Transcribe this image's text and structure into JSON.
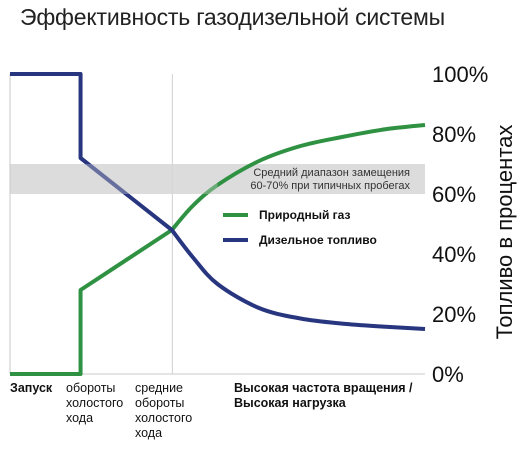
{
  "title": "Эффективность газодизельной системы",
  "chart_data": {
    "type": "line",
    "title": "Эффективность газодизельной системы",
    "ylabel": "Топливо в процентах",
    "ylim": [
      0,
      100
    ],
    "yticks": [
      "0%",
      "20%",
      "40%",
      "60%",
      "80%",
      "100%"
    ],
    "grid": false,
    "legend_position": "center-right",
    "phases": [
      {
        "label": "Запуск",
        "bold": true
      },
      {
        "label": "обороты\nхолостого\nхода",
        "bold": false
      },
      {
        "label": "средние\nобороты\nхолостого\nхода",
        "bold": false
      },
      {
        "label": "Высокая частота вращения /\nВысокая нагрузка",
        "bold": true
      }
    ],
    "phase_divider": "средние обороты холостого хода",
    "band": {
      "range": [
        60,
        70
      ],
      "text": [
        "Средний диапазон замещения",
        "60-70% при типичных пробегах"
      ]
    },
    "series": [
      {
        "name": "Природный газ",
        "color": "#2f9142",
        "points": [
          [
            0,
            0
          ],
          [
            0.17,
            0
          ],
          [
            0.17,
            28
          ],
          [
            0.39,
            48
          ],
          [
            0.44,
            56
          ],
          [
            0.5,
            63
          ],
          [
            0.6,
            71
          ],
          [
            0.7,
            76
          ],
          [
            0.8,
            79
          ],
          [
            0.9,
            81.5
          ],
          [
            1.0,
            83
          ]
        ]
      },
      {
        "name": "Дизельное топливо",
        "color": "#28357f",
        "points": [
          [
            0,
            100
          ],
          [
            0.17,
            100
          ],
          [
            0.17,
            72
          ],
          [
            0.39,
            48
          ],
          [
            0.44,
            39
          ],
          [
            0.5,
            30
          ],
          [
            0.6,
            22
          ],
          [
            0.7,
            18.5
          ],
          [
            0.8,
            16.8
          ],
          [
            0.9,
            15.8
          ],
          [
            1.0,
            15
          ]
        ]
      }
    ]
  }
}
